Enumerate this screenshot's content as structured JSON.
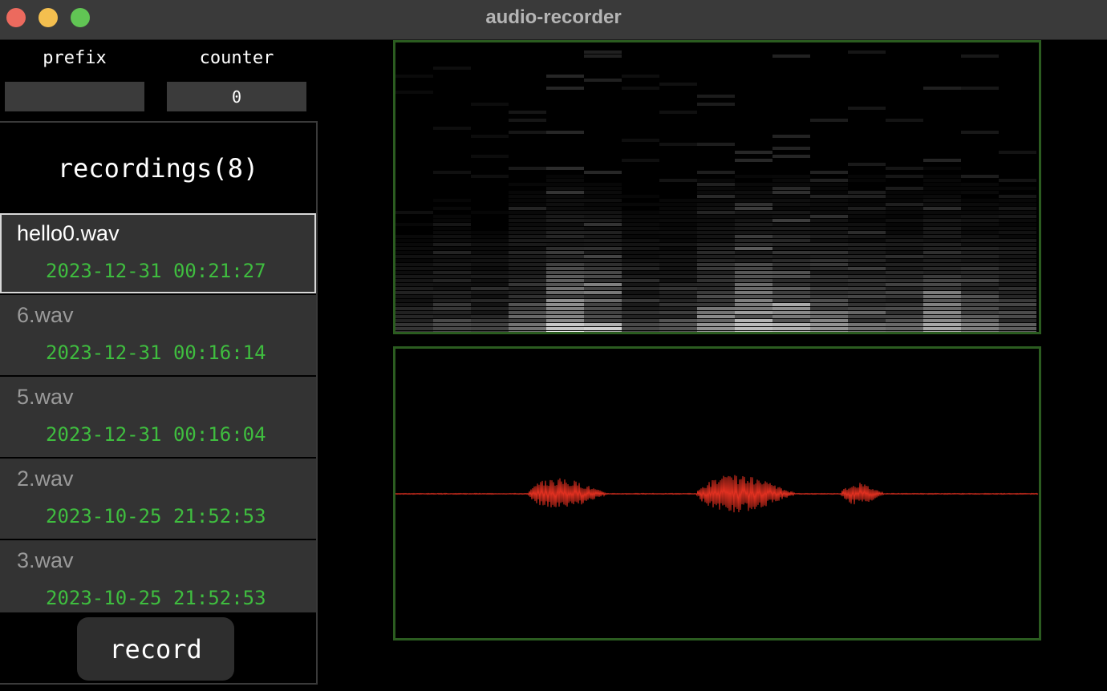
{
  "window": {
    "title": "audio-recorder"
  },
  "fields": {
    "prefix": {
      "label": "prefix",
      "value": ""
    },
    "counter": {
      "label": "counter",
      "value": "0"
    }
  },
  "recordings": {
    "header": "recordings(8)",
    "items": [
      {
        "name": "hello0.wav",
        "date": "2023-12-31 00:21:27",
        "selected": true
      },
      {
        "name": "6.wav",
        "date": "2023-12-31 00:16:14",
        "selected": false
      },
      {
        "name": "5.wav",
        "date": "2023-12-31 00:16:04",
        "selected": false
      },
      {
        "name": "2.wav",
        "date": "2023-10-25 21:52:53",
        "selected": false
      },
      {
        "name": "3.wav",
        "date": "2023-10-25 21:52:53",
        "selected": false
      }
    ]
  },
  "buttons": {
    "record": "record"
  },
  "colors": {
    "date_text": "#3fbd3f",
    "view_border": "#2b5c20",
    "waveform": "#e03020"
  }
}
